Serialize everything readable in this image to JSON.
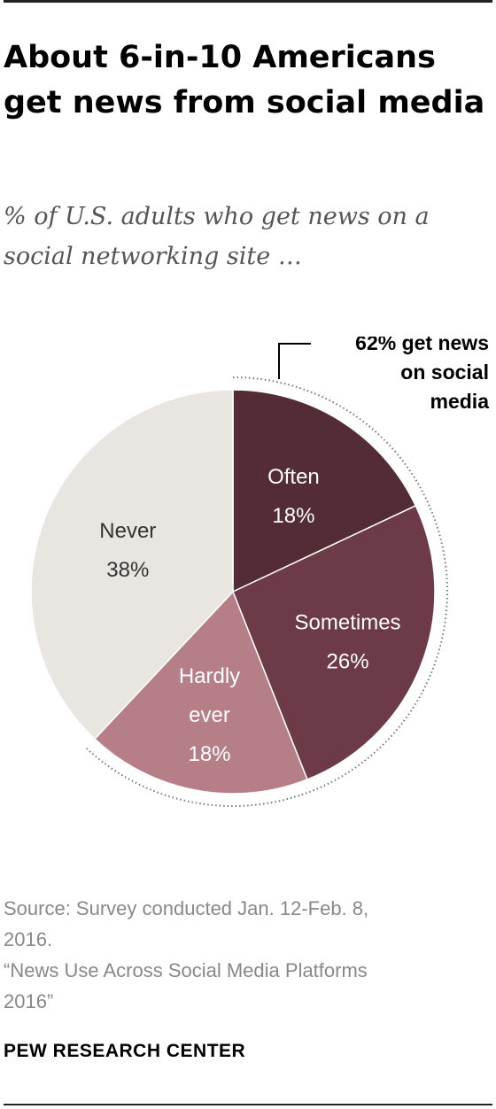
{
  "title": "About 6-in-10 Americans get news from social media",
  "subtitle": "% of U.S. adults who get news on a social networking site …",
  "chart_data": {
    "type": "pie",
    "slices": [
      {
        "label": "Often",
        "value": 18,
        "value_label": "18%",
        "color": "#542c35"
      },
      {
        "label": "Sometimes",
        "value": 26,
        "value_label": "26%",
        "color": "#6d3a47"
      },
      {
        "label": "Hardly ever",
        "label_lines": [
          "Hardly",
          "ever"
        ],
        "value": 18,
        "value_label": "18%",
        "color": "#b67f88"
      },
      {
        "label": "Never",
        "value": 38,
        "value_label": "38%",
        "color": "#e9e6e1"
      }
    ],
    "annotation": {
      "text": "62% get news on social media",
      "lines": [
        "62% get news",
        "on social",
        "media"
      ],
      "spans": [
        "Often",
        "Sometimes",
        "Hardly ever"
      ]
    }
  },
  "source_lines": [
    "Source: Survey conducted Jan. 12-Feb. 8,",
    "2016.",
    "“News Use Across Social Media Platforms",
    "2016”"
  ],
  "brand": "PEW RESEARCH CENTER",
  "colors": {
    "label_light": "#ffffff",
    "label_dark": "#333333",
    "annotation": "#000000"
  }
}
